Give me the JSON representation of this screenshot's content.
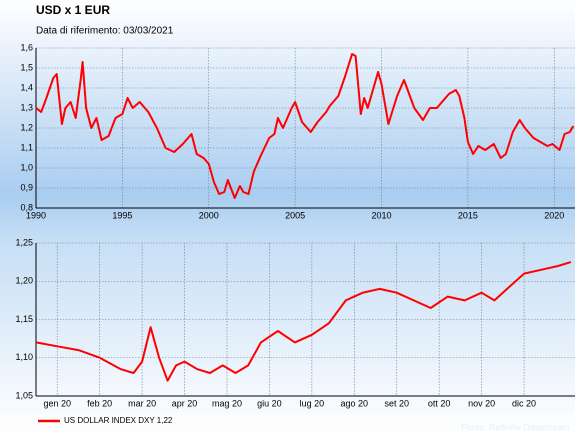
{
  "chart_data": [
    {
      "type": "line",
      "title": "USD x 1 EUR",
      "subtitle": "Data di riferimento: 03/03/2021",
      "series": [
        {
          "color": "#ff0000",
          "x": [
            1990,
            1990.3,
            1990.6,
            1991,
            1991.2,
            1991.5,
            1991.7,
            1992,
            1992.3,
            1992.6,
            1992.7,
            1992.9,
            1993.2,
            1993.5,
            1993.8,
            1994.2,
            1994.6,
            1995,
            1995.3,
            1995.6,
            1996,
            1996.5,
            1997,
            1997.5,
            1998,
            1998.5,
            1999,
            1999.3,
            1999.7,
            2000,
            2000.3,
            2000.6,
            2000.9,
            2001.1,
            2001.5,
            2001.8,
            2002,
            2002.3,
            2002.6,
            2003,
            2003.5,
            2003.8,
            2004,
            2004.3,
            2004.8,
            2005,
            2005.4,
            2005.9,
            2006.3,
            2006.8,
            2007,
            2007.5,
            2007.9,
            2008.3,
            2008.5,
            2008.8,
            2009,
            2009.2,
            2009.8,
            2010,
            2010.4,
            2010.9,
            2011.3,
            2011.9,
            2012.4,
            2012.8,
            2013.2,
            2013.9,
            2014.3,
            2014.5,
            2014.8,
            2015,
            2015.3,
            2015.6,
            2016,
            2016.5,
            2016.9,
            2017.2,
            2017.6,
            2018,
            2018.3,
            2018.8,
            2019,
            2019.6,
            2019.9,
            2020.3,
            2020.6,
            2020.9,
            2021.1
          ],
          "values": [
            1.3,
            1.28,
            1.35,
            1.45,
            1.47,
            1.22,
            1.3,
            1.33,
            1.25,
            1.45,
            1.53,
            1.3,
            1.2,
            1.25,
            1.14,
            1.16,
            1.25,
            1.27,
            1.35,
            1.3,
            1.33,
            1.28,
            1.2,
            1.1,
            1.08,
            1.12,
            1.17,
            1.07,
            1.05,
            1.02,
            0.93,
            0.87,
            0.88,
            0.94,
            0.85,
            0.91,
            0.88,
            0.87,
            0.98,
            1.06,
            1.15,
            1.17,
            1.25,
            1.2,
            1.3,
            1.33,
            1.23,
            1.18,
            1.23,
            1.28,
            1.31,
            1.36,
            1.46,
            1.57,
            1.56,
            1.27,
            1.35,
            1.3,
            1.48,
            1.42,
            1.22,
            1.36,
            1.44,
            1.3,
            1.24,
            1.3,
            1.3,
            1.37,
            1.39,
            1.36,
            1.25,
            1.13,
            1.07,
            1.11,
            1.09,
            1.12,
            1.05,
            1.07,
            1.18,
            1.24,
            1.2,
            1.15,
            1.14,
            1.11,
            1.12,
            1.09,
            1.17,
            1.18,
            1.21
          ]
        }
      ],
      "xlim": [
        1990,
        2021.2
      ],
      "xticks": [
        1990,
        1995,
        2000,
        2005,
        2010,
        2015,
        2020
      ],
      "ylim": [
        0.8,
        1.6
      ],
      "yticks": [
        {
          "value": 0.8,
          "label": "0,8"
        },
        {
          "value": 0.9,
          "label": "0,9"
        },
        {
          "value": 1.0,
          "label": "1,0"
        },
        {
          "value": 1.1,
          "label": "1,1"
        },
        {
          "value": 1.2,
          "label": "1,2"
        },
        {
          "value": 1.3,
          "label": "1,3"
        },
        {
          "value": 1.4,
          "label": "1,4"
        },
        {
          "value": 1.5,
          "label": "1,5"
        },
        {
          "value": 1.6,
          "label": "1,6"
        }
      ],
      "grid": true
    },
    {
      "type": "line",
      "source": "Fonte: Refinitiv Datastream",
      "series": [
        {
          "name": "US DOLLAR INDEX DXY 1,22",
          "color": "#ff0000",
          "x": [
            -0.5,
            0,
            0.5,
            1,
            1.5,
            1.8,
            2.0,
            2.2,
            2.4,
            2.6,
            2.8,
            3.0,
            3.3,
            3.6,
            3.9,
            4.2,
            4.5,
            4.8,
            5.2,
            5.6,
            6.0,
            6.4,
            6.8,
            7.2,
            7.6,
            8.0,
            8.4,
            8.8,
            9.2,
            9.6,
            10.0,
            10.3,
            10.6,
            11.0,
            11.4,
            11.8,
            12.1
          ],
          "values": [
            1.12,
            1.115,
            1.11,
            1.1,
            1.085,
            1.08,
            1.095,
            1.14,
            1.1,
            1.07,
            1.09,
            1.095,
            1.085,
            1.08,
            1.09,
            1.08,
            1.09,
            1.12,
            1.135,
            1.12,
            1.13,
            1.145,
            1.175,
            1.185,
            1.19,
            1.185,
            1.175,
            1.165,
            1.18,
            1.175,
            1.185,
            1.175,
            1.19,
            1.21,
            1.215,
            1.22,
            1.225
          ]
        }
      ],
      "xlim": [
        -0.5,
        12.2
      ],
      "xticks": [
        {
          "value": 0,
          "label": "gen 20"
        },
        {
          "value": 1,
          "label": "feb 20"
        },
        {
          "value": 2,
          "label": "mar 20"
        },
        {
          "value": 3,
          "label": "apr 20"
        },
        {
          "value": 4,
          "label": "mag 20"
        },
        {
          "value": 5,
          "label": "giu 20"
        },
        {
          "value": 6,
          "label": "lug 20"
        },
        {
          "value": 7,
          "label": "ago 20"
        },
        {
          "value": 8,
          "label": "set 20"
        },
        {
          "value": 9,
          "label": "ott 20"
        },
        {
          "value": 10,
          "label": "nov 20"
        },
        {
          "value": 11,
          "label": "dic 20"
        }
      ],
      "ylim": [
        1.05,
        1.25
      ],
      "yticks": [
        {
          "value": 1.05,
          "label": "1,05"
        },
        {
          "value": 1.1,
          "label": "1,10"
        },
        {
          "value": 1.15,
          "label": "1,15"
        },
        {
          "value": 1.2,
          "label": "1,20"
        },
        {
          "value": 1.25,
          "label": "1,25"
        }
      ],
      "grid": true
    }
  ]
}
